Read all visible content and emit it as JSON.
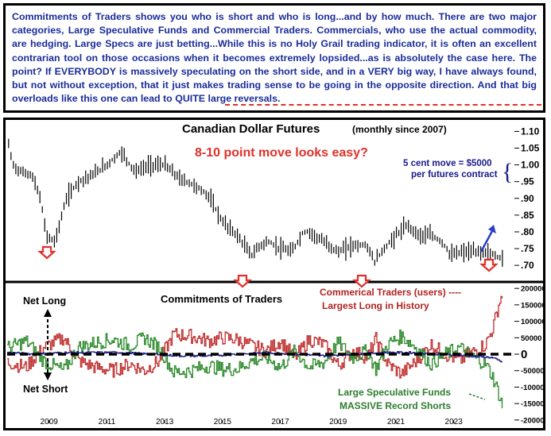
{
  "intro": {
    "text": "Commitments of Traders shows you who is short and who is long...and by how much. There are two major categories, Large Speculative Funds and Commercial Traders. Commercials, who use the actual commodity, are hedging. Large Specs are just betting...While this is no Holy Grail trading indicator, it is often an excellent contrarian tool on those occasions when it becomes extremely lopsided...as is absolutely the case here. The point? If EVERYBODY is massively speculating on the short side, and in a VERY big way, I have always found, but not without exception, that it just makes trading sense to be going in the opposite direction. And that big overloads like this one can lead to QUITE large reversals."
  },
  "colors": {
    "text_blue": "#1a2c9a",
    "annot_red": "#e0312b",
    "annot_darkred": "#b22222",
    "annot_green": "#2e7d2e",
    "annot_navy": "#1a1a8c",
    "arrow_blue": "#2a3fc4"
  },
  "chart_data": [
    {
      "type": "bar",
      "title": "Canadian Dollar Futures",
      "subtitle": "(monthly since 2007)",
      "ylim": [
        0.66,
        1.12
      ],
      "y_ticks": [
        "1.10",
        "1.05",
        "1.00",
        ".95",
        ".90",
        ".85",
        ".80",
        ".75",
        ".70"
      ],
      "y_tick_values": [
        1.1,
        1.05,
        1.0,
        0.95,
        0.9,
        0.85,
        0.8,
        0.75,
        0.7
      ],
      "anchors": [
        [
          2007.6,
          1.06
        ],
        [
          2007.75,
          1.0
        ],
        [
          2008.0,
          0.98
        ],
        [
          2008.4,
          0.97
        ],
        [
          2008.7,
          0.9
        ],
        [
          2008.9,
          0.79
        ],
        [
          2009.2,
          0.77
        ],
        [
          2009.6,
          0.9
        ],
        [
          2010.0,
          0.95
        ],
        [
          2010.5,
          0.97
        ],
        [
          2011.0,
          1.0
        ],
        [
          2011.5,
          1.04
        ],
        [
          2011.8,
          1.0
        ],
        [
          2012.0,
          0.98
        ],
        [
          2012.5,
          1.0
        ],
        [
          2013.0,
          1.0
        ],
        [
          2013.5,
          0.96
        ],
        [
          2014.0,
          0.94
        ],
        [
          2014.5,
          0.91
        ],
        [
          2015.0,
          0.83
        ],
        [
          2015.5,
          0.79
        ],
        [
          2016.0,
          0.73
        ],
        [
          2016.3,
          0.76
        ],
        [
          2016.6,
          0.77
        ],
        [
          2017.0,
          0.75
        ],
        [
          2017.4,
          0.74
        ],
        [
          2017.8,
          0.8
        ],
        [
          2018.0,
          0.8
        ],
        [
          2018.5,
          0.77
        ],
        [
          2019.0,
          0.74
        ],
        [
          2019.5,
          0.76
        ],
        [
          2020.0,
          0.76
        ],
        [
          2020.25,
          0.71
        ],
        [
          2020.6,
          0.75
        ],
        [
          2021.0,
          0.79
        ],
        [
          2021.4,
          0.82
        ],
        [
          2021.8,
          0.79
        ],
        [
          2022.2,
          0.79
        ],
        [
          2022.6,
          0.77
        ],
        [
          2022.9,
          0.73
        ],
        [
          2023.3,
          0.74
        ],
        [
          2023.7,
          0.74
        ],
        [
          2024.0,
          0.74
        ],
        [
          2024.4,
          0.73
        ],
        [
          2024.7,
          0.72
        ]
      ],
      "annotations": {
        "headline": "8-10 point move looks easy?",
        "move_line1": "5 cent move = $5000",
        "move_line2": "per futures contract"
      }
    },
    {
      "type": "line",
      "title": "Commitments of Traders",
      "ylim": [
        -210000,
        210000
      ],
      "y_ticks": [
        "200000",
        "150000",
        "100000",
        "50000",
        "0",
        "-50000",
        "-100000",
        "-150000",
        "-200000"
      ],
      "y_tick_values": [
        200000,
        150000,
        100000,
        50000,
        0,
        -50000,
        -100000,
        -150000,
        -200000
      ],
      "x_ticks": [
        "2009",
        "2011",
        "2013",
        "2015",
        "2017",
        "2019",
        "2021",
        "2023"
      ],
      "x_tick_values": [
        2009,
        2011,
        2013,
        2015,
        2017,
        2019,
        2021,
        2023
      ],
      "xlim": [
        2007.55,
        2025.1
      ],
      "series": [
        {
          "color": "#c03030",
          "anchors": [
            [
              2007.6,
              -25000
            ],
            [
              2008.2,
              -40000
            ],
            [
              2008.8,
              20000
            ],
            [
              2009.5,
              50000
            ],
            [
              2010.0,
              -20000
            ],
            [
              2010.6,
              -40000
            ],
            [
              2011.2,
              -50000
            ],
            [
              2011.8,
              -30000
            ],
            [
              2012.3,
              -50000
            ],
            [
              2012.8,
              -20000
            ],
            [
              2013.3,
              60000
            ],
            [
              2013.9,
              55000
            ],
            [
              2014.5,
              40000
            ],
            [
              2015.0,
              50000
            ],
            [
              2015.5,
              45000
            ],
            [
              2016.0,
              25000
            ],
            [
              2016.5,
              10000
            ],
            [
              2017.0,
              40000
            ],
            [
              2017.5,
              -10000
            ],
            [
              2018.0,
              45000
            ],
            [
              2018.5,
              30000
            ],
            [
              2019.0,
              -35000
            ],
            [
              2019.5,
              10000
            ],
            [
              2020.0,
              -10000
            ],
            [
              2020.3,
              45000
            ],
            [
              2020.7,
              -30000
            ],
            [
              2021.2,
              -60000
            ],
            [
              2021.7,
              -20000
            ],
            [
              2022.2,
              30000
            ],
            [
              2022.7,
              0
            ],
            [
              2023.2,
              -20000
            ],
            [
              2023.7,
              10000
            ],
            [
              2024.1,
              30000
            ],
            [
              2024.35,
              80000
            ],
            [
              2024.55,
              150000
            ],
            [
              2024.7,
              190000
            ]
          ]
        },
        {
          "color": "#2e8a2e",
          "anchors": [
            [
              2007.6,
              20000
            ],
            [
              2008.2,
              40000
            ],
            [
              2008.8,
              -20000
            ],
            [
              2009.5,
              -50000
            ],
            [
              2010.0,
              20000
            ],
            [
              2010.6,
              35000
            ],
            [
              2011.2,
              45000
            ],
            [
              2011.8,
              25000
            ],
            [
              2012.3,
              50000
            ],
            [
              2012.8,
              20000
            ],
            [
              2013.3,
              -55000
            ],
            [
              2013.9,
              -50000
            ],
            [
              2014.5,
              -35000
            ],
            [
              2015.0,
              -45000
            ],
            [
              2015.5,
              -45000
            ],
            [
              2016.0,
              -20000
            ],
            [
              2016.5,
              -10000
            ],
            [
              2017.0,
              -40000
            ],
            [
              2017.5,
              10000
            ],
            [
              2018.0,
              -40000
            ],
            [
              2018.5,
              -25000
            ],
            [
              2019.0,
              35000
            ],
            [
              2019.5,
              -10000
            ],
            [
              2020.0,
              10000
            ],
            [
              2020.3,
              -45000
            ],
            [
              2020.7,
              30000
            ],
            [
              2021.2,
              55000
            ],
            [
              2021.7,
              20000
            ],
            [
              2022.2,
              -30000
            ],
            [
              2022.7,
              0
            ],
            [
              2023.2,
              20000
            ],
            [
              2023.7,
              -10000
            ],
            [
              2024.1,
              -30000
            ],
            [
              2024.35,
              -70000
            ],
            [
              2024.55,
              -120000
            ],
            [
              2024.7,
              -165000
            ]
          ]
        },
        {
          "color": "#1a1a8c",
          "anchors": [
            [
              2007.6,
              5000
            ],
            [
              2008.5,
              0
            ],
            [
              2009.5,
              5000
            ],
            [
              2010.5,
              5000
            ],
            [
              2011.5,
              5000
            ],
            [
              2012.5,
              0
            ],
            [
              2013.5,
              -5000
            ],
            [
              2014.5,
              -5000
            ],
            [
              2015.5,
              0
            ],
            [
              2016.5,
              5000
            ],
            [
              2017.5,
              0
            ],
            [
              2018.5,
              -5000
            ],
            [
              2019.5,
              0
            ],
            [
              2020.5,
              5000
            ],
            [
              2021.5,
              5000
            ],
            [
              2022.5,
              0
            ],
            [
              2023.5,
              -5000
            ],
            [
              2024.3,
              -10000
            ],
            [
              2024.7,
              -25000
            ]
          ]
        }
      ],
      "annotations": {
        "net_long": "Net Long",
        "net_short": "Net Short",
        "commercial_line1": "Commerical Traders (users) ----",
        "commercial_line2": "Largest Long in History",
        "specs_line1": "Large Speculative Funds",
        "specs_line2": "MASSIVE Record Shorts"
      }
    }
  ]
}
